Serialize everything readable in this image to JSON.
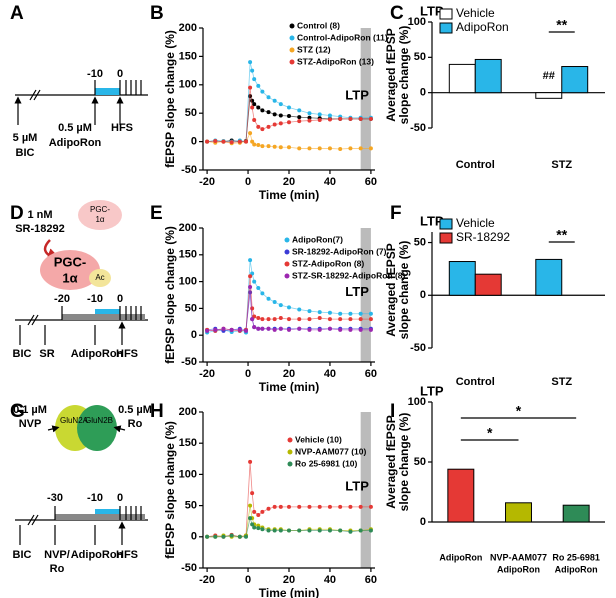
{
  "panel_labels": [
    "A",
    "B",
    "C",
    "D",
    "E",
    "F",
    "G",
    "H",
    "I"
  ],
  "diagrams": {
    "a": [
      "-10",
      "0",
      "5 µM",
      "BIC",
      "0.5 µM",
      "AdipoRon",
      "HFS"
    ],
    "d": [
      "1 nM",
      "SR-18292",
      "PGC-",
      "1α",
      "PGC-",
      "1α",
      "Ac",
      "-20",
      "-10",
      "0",
      "BIC",
      "SR",
      "AdipoRon",
      "HFS"
    ],
    "g": [
      "0.1 µM",
      "NVP",
      "GluN2A",
      "GluN2B",
      "0.5 µM",
      "Ro",
      "-30",
      "-10",
      "0",
      "BIC",
      "NVP/",
      "Ro",
      "AdipoRon",
      "HFS"
    ]
  },
  "chart_data": [
    {
      "type": "line",
      "y_label": "fEPSP slope change (%)",
      "x_label": "Time (min)",
      "annotation": "LTP",
      "highlight": [
        55,
        60
      ],
      "x": [
        -20,
        -16,
        -12,
        -8,
        -4,
        -1,
        1,
        2,
        3,
        5,
        7,
        10,
        13,
        16,
        20,
        25,
        30,
        35,
        40,
        45,
        50,
        55,
        60
      ],
      "xlim": [
        -22,
        62
      ],
      "xticks": [
        -20,
        0,
        20,
        40,
        60
      ],
      "ylim": [
        -50,
        200
      ],
      "yticks": [
        -50,
        0,
        50,
        100,
        150,
        200
      ],
      "series": [
        {
          "name": "Control (8)",
          "color": "#000000",
          "values": [
            0,
            1,
            0,
            2,
            0,
            1,
            80,
            72,
            66,
            60,
            55,
            52,
            48,
            46,
            45,
            43,
            42,
            41,
            40,
            40,
            40,
            40,
            40
          ]
        },
        {
          "name": "Control-AdipoRon (11)",
          "color": "#29b6e8",
          "values": [
            0,
            2,
            1,
            0,
            2,
            0,
            140,
            125,
            110,
            98,
            88,
            78,
            72,
            66,
            60,
            55,
            50,
            48,
            46,
            44,
            42,
            42,
            42
          ]
        },
        {
          "name": "STZ (12)",
          "color": "#f5a623",
          "values": [
            0,
            -2,
            0,
            -3,
            -2,
            0,
            15,
            0,
            -5,
            -6,
            -8,
            -8,
            -9,
            -10,
            -10,
            -12,
            -12,
            -12,
            -12,
            -13,
            -12,
            -12,
            -12
          ]
        },
        {
          "name": "STZ-AdipoRon (13)",
          "color": "#e53935",
          "values": [
            0,
            1,
            0,
            -1,
            0,
            0,
            95,
            60,
            38,
            26,
            22,
            26,
            30,
            32,
            34,
            36,
            37,
            38,
            39,
            40,
            40,
            40,
            40
          ]
        }
      ]
    },
    {
      "type": "bar",
      "title": "LTP",
      "y_label": [
        "Averaged fEPSP",
        "slope change (%)"
      ],
      "categories": [
        "Control",
        "STZ"
      ],
      "ylim": [
        -50,
        100
      ],
      "yticks": [
        -50,
        0,
        50,
        100
      ],
      "annotations": [
        "##",
        "**"
      ],
      "series": [
        {
          "name": "Vehicle",
          "color": "#ffffff",
          "values": [
            40,
            -8
          ]
        },
        {
          "name": "AdipoRon",
          "color": "#29b6e8",
          "values": [
            47,
            37
          ]
        }
      ]
    },
    {
      "type": "line",
      "y_label": "fEPSP slope change (%)",
      "x_label": "Time (min)",
      "annotation": "LTP",
      "highlight": [
        55,
        60
      ],
      "x": [
        -20,
        -16,
        -12,
        -8,
        -4,
        -1,
        1,
        2,
        3,
        5,
        7,
        10,
        13,
        16,
        20,
        25,
        30,
        35,
        40,
        45,
        50,
        55,
        60
      ],
      "xlim": [
        -22,
        62
      ],
      "xticks": [
        -20,
        0,
        20,
        40,
        60
      ],
      "ylim": [
        -50,
        200
      ],
      "yticks": [
        -50,
        0,
        50,
        100,
        150,
        200
      ],
      "series": [
        {
          "name": "AdipoRon(7)",
          "color": "#29b6e8",
          "values": [
            5,
            8,
            10,
            6,
            8,
            5,
            140,
            115,
            100,
            88,
            78,
            68,
            62,
            56,
            52,
            48,
            45,
            43,
            42,
            40,
            40,
            40,
            40
          ]
        },
        {
          "name": "SR-18292-AdipoRon (7)",
          "color": "#3b3bd6",
          "values": [
            10,
            12,
            8,
            10,
            12,
            10,
            80,
            30,
            15,
            12,
            12,
            12,
            12,
            12,
            12,
            12,
            12,
            12,
            12,
            12,
            12,
            12,
            12
          ]
        },
        {
          "name": "STZ-AdipoRon (8)",
          "color": "#e53935",
          "values": [
            10,
            8,
            12,
            10,
            8,
            10,
            110,
            50,
            35,
            32,
            30,
            30,
            30,
            32,
            30,
            30,
            30,
            32,
            30,
            30,
            30,
            30,
            30
          ]
        },
        {
          "name": "STZ-SR-18292-AdipoRon (8)",
          "color": "#9c27b0",
          "values": [
            8,
            10,
            12,
            10,
            10,
            8,
            90,
            30,
            15,
            12,
            12,
            12,
            10,
            12,
            10,
            12,
            10,
            10,
            12,
            10,
            10,
            10,
            10
          ]
        }
      ]
    },
    {
      "type": "bar",
      "title": "LTP",
      "y_label": [
        "Averaged fEPSP",
        "slope change (%)"
      ],
      "categories": [
        "Control",
        "STZ"
      ],
      "ylim": [
        -50,
        60
      ],
      "yticks": [
        -50,
        0,
        50
      ],
      "annotations": [
        "**"
      ],
      "series": [
        {
          "name": "Vehicle",
          "color": "#29b6e8",
          "values": [
            32,
            34
          ]
        },
        {
          "name": "SR-18292",
          "color": "#e53935",
          "values": [
            20,
            0
          ]
        }
      ]
    },
    {
      "type": "line",
      "y_label": "fEPSP slope change (%)",
      "x_label": "Time (min)",
      "annotation": "LTP",
      "highlight": [
        55,
        60
      ],
      "x": [
        -20,
        -16,
        -12,
        -8,
        -4,
        -1,
        1,
        2,
        3,
        5,
        7,
        10,
        13,
        16,
        20,
        25,
        30,
        35,
        40,
        45,
        50,
        55,
        60
      ],
      "xlim": [
        -22,
        62
      ],
      "xticks": [
        -20,
        0,
        20,
        40,
        60
      ],
      "ylim": [
        -50,
        200
      ],
      "yticks": [
        -50,
        0,
        50,
        100,
        150,
        200
      ],
      "series": [
        {
          "name": "Vehicle (10)",
          "color": "#e53935",
          "values": [
            0,
            2,
            0,
            3,
            0,
            2,
            120,
            70,
            40,
            35,
            40,
            45,
            48,
            48,
            48,
            48,
            48,
            48,
            48,
            48,
            48,
            48,
            48
          ]
        },
        {
          "name": "NVP-AAM077 (10)",
          "color": "#b5b800",
          "values": [
            0,
            0,
            2,
            0,
            0,
            2,
            50,
            30,
            20,
            18,
            15,
            12,
            12,
            12,
            10,
            10,
            12,
            12,
            12,
            10,
            10,
            10,
            12
          ]
        },
        {
          "name": "Ro 25-6981 (10)",
          "color": "#2e8b57",
          "values": [
            0,
            0,
            0,
            2,
            0,
            0,
            30,
            20,
            15,
            14,
            12,
            10,
            10,
            10,
            10,
            10,
            10,
            10,
            10,
            10,
            8,
            10,
            10
          ]
        }
      ]
    },
    {
      "type": "bar",
      "title": "LTP",
      "y_label": [
        "Averaged fEPSP",
        "slope change (%)"
      ],
      "categories": [
        [
          "AdipoRon"
        ],
        [
          "NVP-AAM077",
          "AdipoRon"
        ],
        [
          "Ro 25-6981",
          "AdipoRon"
        ]
      ],
      "ylim": [
        0,
        100
      ],
      "yticks": [
        0,
        50,
        100
      ],
      "annotations": [
        "*",
        "*"
      ],
      "series": [
        {
          "colors": [
            "#e53935",
            "#b5b800",
            "#2e8b57"
          ],
          "values": [
            44,
            16,
            14
          ]
        }
      ]
    }
  ]
}
